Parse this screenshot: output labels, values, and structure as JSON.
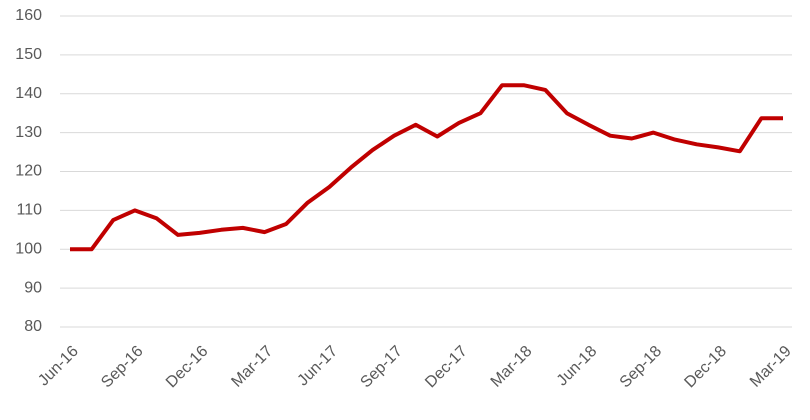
{
  "chart_data": {
    "type": "line",
    "categories": [
      "Jun-16",
      null,
      null,
      "Sep-16",
      null,
      null,
      "Dec-16",
      null,
      null,
      "Mar-17",
      null,
      null,
      "Jun-17",
      null,
      null,
      "Sep-17",
      null,
      null,
      "Dec-17",
      null,
      null,
      "Mar-18",
      null,
      null,
      "Jun-18",
      null,
      null,
      "Sep-18",
      null,
      null,
      "Dec-18",
      null,
      null,
      "Mar-19"
    ],
    "series": [
      {
        "color": "#c00000",
        "values": [
          100,
          100,
          107.5,
          110,
          108,
          103.7,
          104.2,
          105,
          105.5,
          104.4,
          106.5,
          112,
          116,
          121,
          125.5,
          129.2,
          132,
          129,
          132.5,
          135,
          142.2,
          142.2,
          141,
          135,
          132,
          129.2,
          128.5,
          130,
          128.2,
          127,
          126.2,
          125.2,
          133.7,
          133.7
        ]
      }
    ],
    "ylim": [
      80,
      160
    ],
    "yticks": [
      80,
      90,
      100,
      110,
      120,
      130,
      140,
      150,
      160
    ],
    "grid": true
  }
}
